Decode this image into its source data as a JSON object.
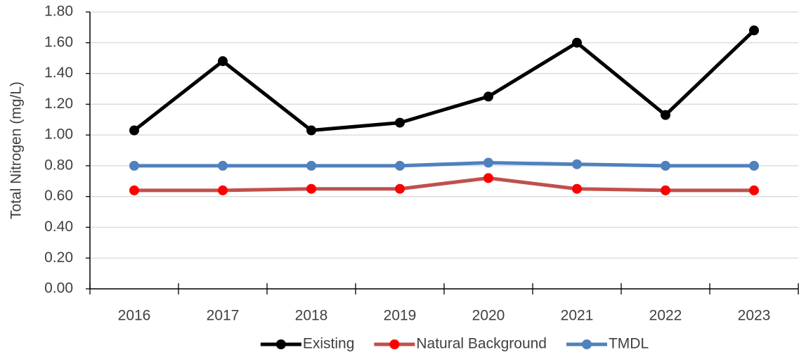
{
  "chart_data": {
    "type": "line",
    "y_label": "Total Nitrogen (mg/L)",
    "categories": [
      "2016",
      "2017",
      "2018",
      "2019",
      "2020",
      "2021",
      "2022",
      "2023"
    ],
    "series": [
      {
        "name": "Existing",
        "color": "#000000",
        "marker_color": "#000000",
        "values": [
          1.03,
          1.48,
          1.03,
          1.08,
          1.25,
          1.6,
          1.13,
          1.68
        ]
      },
      {
        "name": "Natural Background",
        "color": "#c0504d",
        "marker_color": "#ff0000",
        "values": [
          0.64,
          0.64,
          0.65,
          0.65,
          0.72,
          0.65,
          0.64,
          0.64
        ]
      },
      {
        "name": "TMDL",
        "color": "#4f81bd",
        "marker_color": "#4f81bd",
        "values": [
          0.8,
          0.8,
          0.8,
          0.8,
          0.82,
          0.81,
          0.8,
          0.8
        ]
      }
    ],
    "ylim": [
      0,
      1.8
    ],
    "yticks": [
      {
        "value": 0,
        "label": "0.00"
      },
      {
        "value": 0.2,
        "label": "0.20"
      },
      {
        "value": 0.4,
        "label": "0.40"
      },
      {
        "value": 0.6,
        "label": "0.60"
      },
      {
        "value": 0.8,
        "label": "0.80"
      },
      {
        "value": 1.0,
        "label": "1.00"
      },
      {
        "value": 1.2,
        "label": "1.20"
      },
      {
        "value": 1.4,
        "label": "1.40"
      },
      {
        "value": 1.6,
        "label": "1.60"
      },
      {
        "value": 1.8,
        "label": "1.80"
      }
    ],
    "grid": true,
    "legend": "bottom"
  }
}
